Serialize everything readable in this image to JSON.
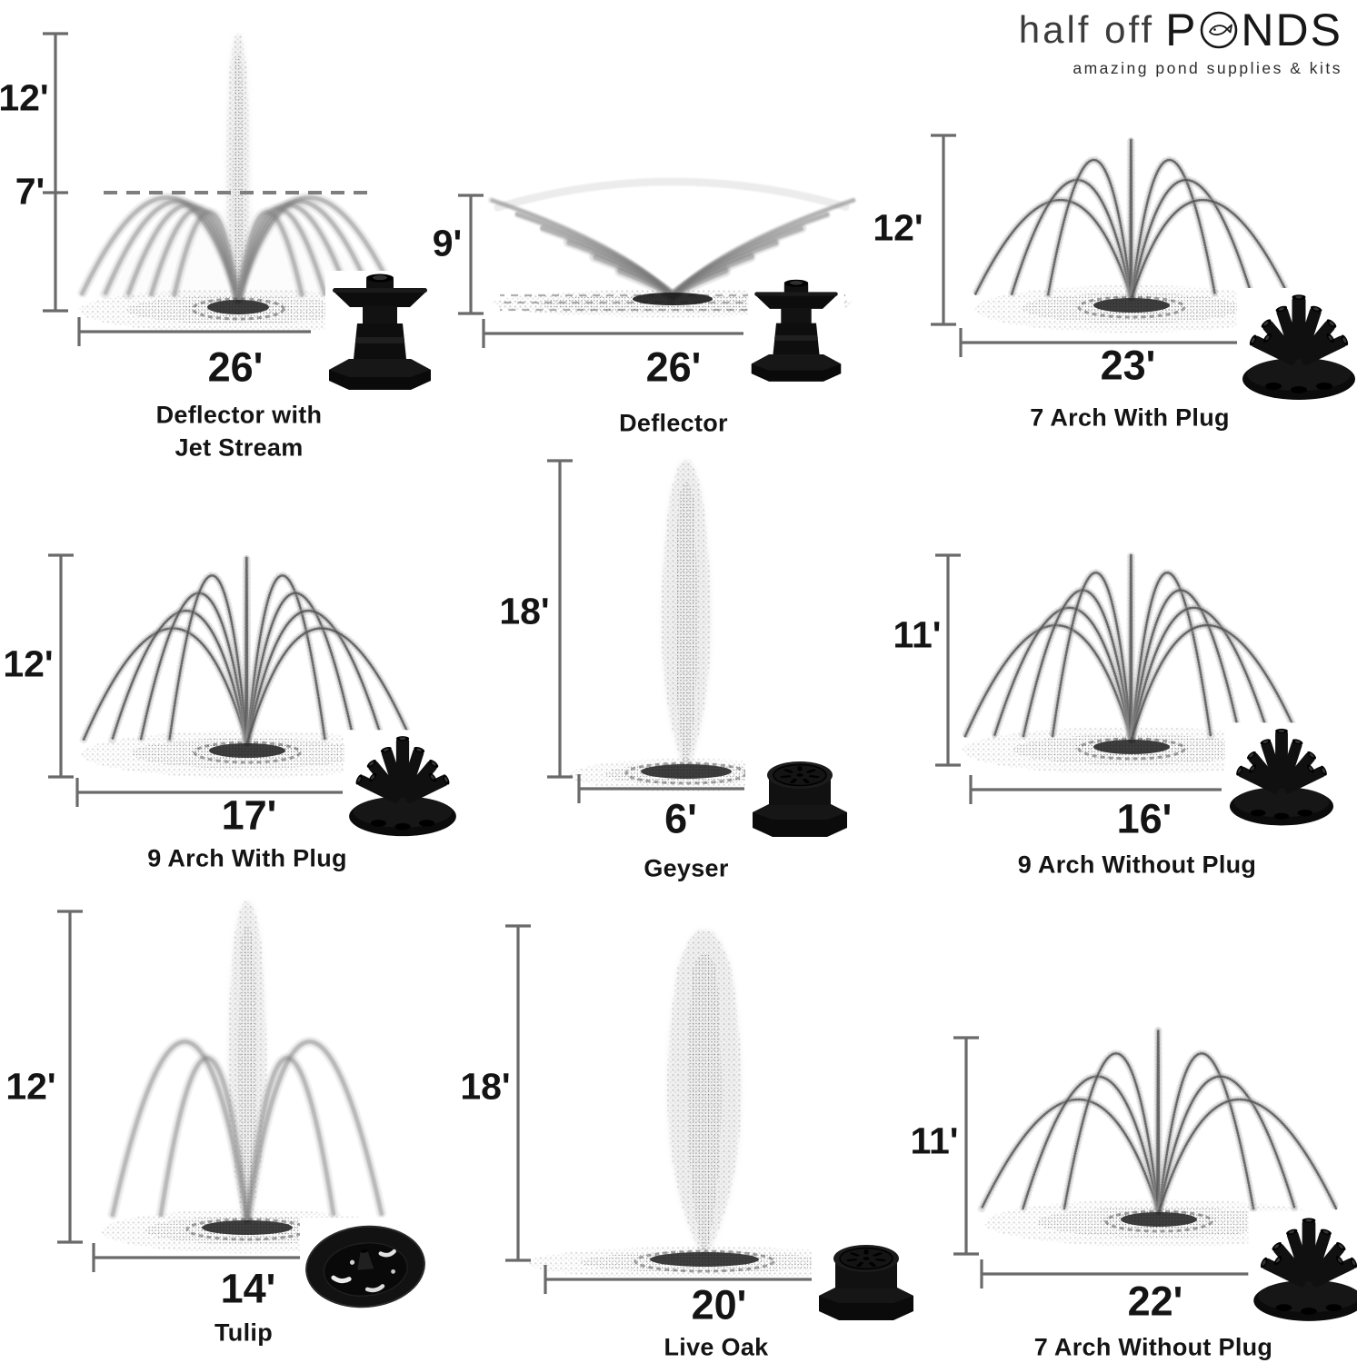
{
  "logo": {
    "half": "half off",
    "ponds_p": "P",
    "ponds_rest": "NDS",
    "tagline": "amazing pond supplies & kits"
  },
  "fountains": [
    {
      "name": "Deflector with Jet Stream",
      "name_line1": "Deflector with",
      "name_line2": "Jet Stream",
      "height": "12'",
      "height2": "7'",
      "width": "26'",
      "spray": "deflector-with-jet-stream",
      "nozzle": "deflector"
    },
    {
      "name": "Deflector",
      "height": "9'",
      "width": "26'",
      "spray": "deflector",
      "nozzle": "deflector"
    },
    {
      "name": "7 Arch With Plug",
      "height": "12'",
      "width": "23'",
      "spray": "7-arch",
      "nozzle": "arch-cluster"
    },
    {
      "name": "9 Arch With Plug",
      "height": "12'",
      "width": "17'",
      "spray": "9-arch",
      "nozzle": "arch-cluster"
    },
    {
      "name": "Geyser",
      "height": "18'",
      "width": "6'",
      "spray": "geyser-column",
      "nozzle": "slotted-cap"
    },
    {
      "name": "9 Arch Without Plug",
      "height": "11'",
      "width": "16'",
      "spray": "9-arch",
      "nozzle": "arch-cluster"
    },
    {
      "name": "Tulip",
      "height": "12'",
      "width": "14'",
      "spray": "tulip",
      "nozzle": "slotted-disc"
    },
    {
      "name": "Live Oak",
      "height": "18'",
      "width": "20'",
      "spray": "wide-column",
      "nozzle": "slotted-cap"
    },
    {
      "name": "7 Arch Without Plug",
      "height": "11'",
      "width": "22'",
      "spray": "7-arch",
      "nozzle": "arch-cluster"
    }
  ]
}
